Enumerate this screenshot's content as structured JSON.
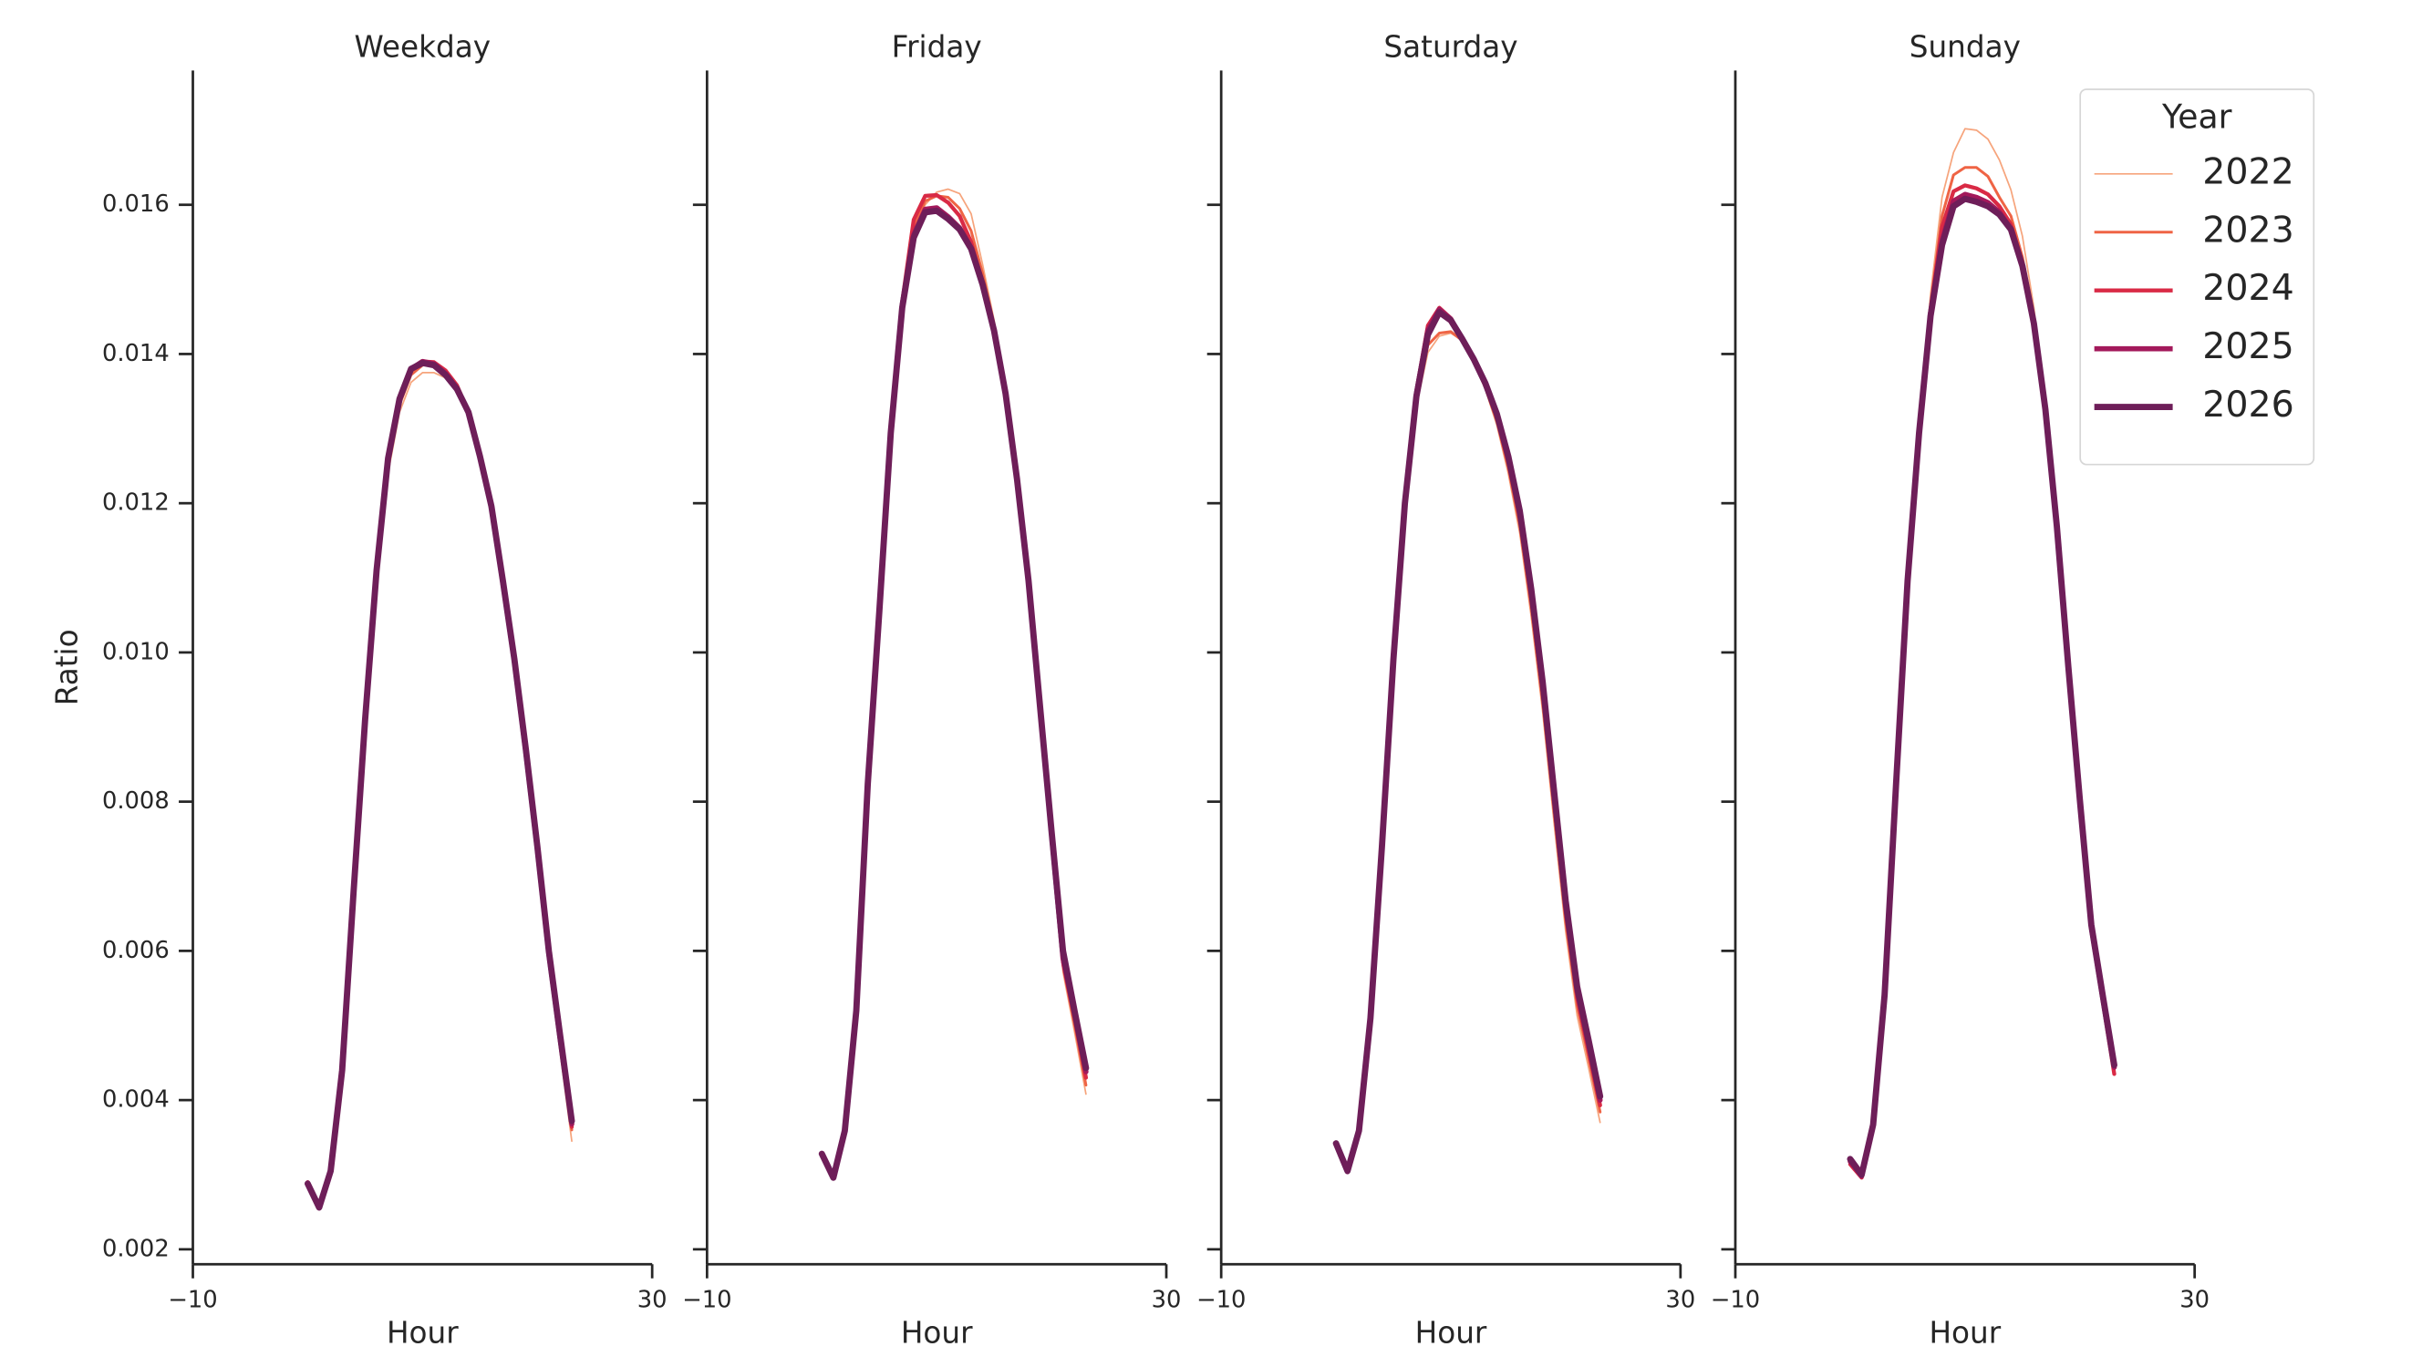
{
  "chart_data": [
    {
      "type": "line",
      "title": "Weekday",
      "xlabel": "Hour",
      "ylabel": "Ratio",
      "x": [
        0,
        1,
        2,
        3,
        4,
        5,
        6,
        7,
        8,
        9,
        10,
        11,
        12,
        13,
        14,
        15,
        16,
        17,
        18,
        19,
        20,
        21,
        22,
        23
      ],
      "xlim": [
        -10,
        30
      ],
      "xticks": [
        {
          "value": -10,
          "label": "−10"
        },
        30
      ],
      "ylim": [
        0.0018,
        0.0178
      ],
      "yticks": [
        0.002,
        0.004,
        0.006,
        0.008,
        {
          "value": 0.01,
          "label": "0.010"
        },
        0.012,
        0.014,
        0.016
      ],
      "series": [
        {
          "color": "#f6a47c",
          "linewidth": 1,
          "values": [
            0.0029,
            0.00258,
            0.00306,
            0.0044,
            0.0068,
            0.0091,
            0.011,
            0.0124,
            0.01322,
            0.01362,
            0.01375,
            0.01375,
            0.01368,
            0.0135,
            0.01318,
            0.01258,
            0.01186,
            0.0108,
            0.00972,
            0.00848,
            0.00718,
            0.0058,
            0.00462,
            0.00345
          ]
        },
        {
          "color": "#ef6445",
          "linewidth": 1.75,
          "values": [
            0.0029,
            0.00258,
            0.00306,
            0.0044,
            0.0068,
            0.0091,
            0.0111,
            0.0125,
            0.01332,
            0.01372,
            0.01385,
            0.01388,
            0.01378,
            0.01358,
            0.01322,
            0.0126,
            0.0119,
            0.01086,
            0.0098,
            0.00857,
            0.00727,
            0.00588,
            0.00472,
            0.0036
          ]
        },
        {
          "color": "#d92a45",
          "linewidth": 2.5,
          "values": [
            0.0029,
            0.00258,
            0.00306,
            0.0044,
            0.0068,
            0.0091,
            0.0111,
            0.0126,
            0.01338,
            0.01378,
            0.0139,
            0.01389,
            0.01378,
            0.01358,
            0.01322,
            0.01262,
            0.01192,
            0.0109,
            0.00984,
            0.00862,
            0.00732,
            0.00592,
            0.00477,
            0.00364
          ]
        },
        {
          "color": "#a3195b",
          "linewidth": 3.25,
          "values": [
            0.00289,
            0.00257,
            0.00306,
            0.0044,
            0.0068,
            0.0091,
            0.0111,
            0.0126,
            0.0134,
            0.0138,
            0.0139,
            0.01387,
            0.01374,
            0.01354,
            0.01322,
            0.01262,
            0.01194,
            0.01093,
            0.00988,
            0.00866,
            0.00736,
            0.00596,
            0.00481,
            0.00368
          ]
        },
        {
          "color": "#6e1e59",
          "linewidth": 4,
          "values": [
            0.00288,
            0.00256,
            0.00305,
            0.0044,
            0.0068,
            0.0091,
            0.0111,
            0.0126,
            0.0134,
            0.0138,
            0.01388,
            0.01385,
            0.01372,
            0.01353,
            0.01322,
            0.01263,
            0.01196,
            0.01096,
            0.00991,
            0.0087,
            0.0074,
            0.006,
            0.00485,
            0.00372
          ]
        }
      ]
    },
    {
      "type": "line",
      "title": "Friday",
      "xlabel": "Hour",
      "x": [
        0,
        1,
        2,
        3,
        4,
        5,
        6,
        7,
        8,
        9,
        10,
        11,
        12,
        13,
        14,
        15,
        16,
        17,
        18,
        19,
        20,
        21,
        22,
        23
      ],
      "xlim": [
        -10,
        30
      ],
      "xticks": [
        {
          "value": -10,
          "label": "−10"
        },
        30
      ],
      "ylim": [
        0.0018,
        0.0178
      ],
      "yticks": [
        0.002,
        0.004,
        0.006,
        0.008,
        0.01,
        0.012,
        0.014,
        0.016
      ],
      "series": [
        {
          "color": "#f6a47c",
          "linewidth": 1,
          "values": [
            0.00324,
            0.00294,
            0.00357,
            0.0052,
            0.00824,
            0.01055,
            0.01294,
            0.0146,
            0.01562,
            0.016,
            0.01617,
            0.01621,
            0.01615,
            0.01588,
            0.0152,
            0.01445,
            0.01352,
            0.0123,
            0.01088,
            0.00914,
            0.00742,
            0.00572,
            0.00492,
            0.00408
          ]
        },
        {
          "color": "#ef6445",
          "linewidth": 1.75,
          "values": [
            0.00325,
            0.00295,
            0.00358,
            0.0052,
            0.00826,
            0.01058,
            0.01298,
            0.01466,
            0.0157,
            0.01605,
            0.01612,
            0.0161,
            0.01595,
            0.01565,
            0.01508,
            0.0144,
            0.0135,
            0.0123,
            0.0109,
            0.00918,
            0.00748,
            0.0058,
            0.00502,
            0.0042
          ]
        },
        {
          "color": "#d92a45",
          "linewidth": 2.5,
          "values": [
            0.00326,
            0.00296,
            0.0036,
            0.0052,
            0.00828,
            0.0106,
            0.013,
            0.0147,
            0.0158,
            0.01612,
            0.01613,
            0.01603,
            0.01585,
            0.0155,
            0.01496,
            0.01432,
            0.01345,
            0.01228,
            0.0109,
            0.0092,
            0.00752,
            0.00585,
            0.0051,
            0.0043
          ]
        },
        {
          "color": "#a3195b",
          "linewidth": 3.25,
          "values": [
            0.00328,
            0.00297,
            0.0036,
            0.0052,
            0.00826,
            0.01057,
            0.01297,
            0.01466,
            0.0156,
            0.01594,
            0.01596,
            0.01584,
            0.01569,
            0.01542,
            0.01493,
            0.0143,
            0.01345,
            0.0123,
            0.01093,
            0.00925,
            0.00757,
            0.0059,
            0.00516,
            0.00438
          ]
        },
        {
          "color": "#6e1e59",
          "linewidth": 4,
          "values": [
            0.00328,
            0.00296,
            0.00359,
            0.0052,
            0.00824,
            0.01054,
            0.01294,
            0.01462,
            0.01556,
            0.0159,
            0.01592,
            0.01581,
            0.01567,
            0.01541,
            0.01493,
            0.01431,
            0.01347,
            0.01232,
            0.01096,
            0.00928,
            0.00761,
            0.006,
            0.0052,
            0.00443
          ]
        }
      ]
    },
    {
      "type": "line",
      "title": "Saturday",
      "xlabel": "Hour",
      "x": [
        0,
        1,
        2,
        3,
        4,
        5,
        6,
        7,
        8,
        9,
        10,
        11,
        12,
        13,
        14,
        15,
        16,
        17,
        18,
        19,
        20,
        21,
        22,
        23
      ],
      "xlim": [
        -10,
        30
      ],
      "xticks": [
        {
          "value": -10,
          "label": "−10"
        },
        30
      ],
      "ylim": [
        0.0018,
        0.0178
      ],
      "yticks": [
        0.002,
        0.004,
        0.006,
        0.008,
        0.01,
        0.012,
        0.014,
        0.016
      ],
      "series": [
        {
          "color": "#f6a47c",
          "linewidth": 1,
          "values": [
            0.00339,
            0.00302,
            0.00356,
            0.0051,
            0.00738,
            0.00987,
            0.01196,
            0.0133,
            0.01402,
            0.01424,
            0.01428,
            0.01418,
            0.0139,
            0.01353,
            0.01305,
            0.0124,
            0.0116,
            0.01048,
            0.0092,
            0.0077,
            0.00626,
            0.00513,
            0.00443,
            0.0037
          ]
        },
        {
          "color": "#ef6445",
          "linewidth": 1.75,
          "values": [
            0.0034,
            0.00303,
            0.00357,
            0.0051,
            0.0074,
            0.0099,
            0.012,
            0.01335,
            0.01412,
            0.01428,
            0.0143,
            0.01418,
            0.0139,
            0.01355,
            0.0131,
            0.01248,
            0.0117,
            0.0106,
            0.00932,
            0.00784,
            0.0064,
            0.00527,
            0.00456,
            0.00384
          ]
        },
        {
          "color": "#d92a45",
          "linewidth": 2.5,
          "values": [
            0.0034,
            0.00304,
            0.00358,
            0.0051,
            0.00744,
            0.00996,
            0.01206,
            0.0135,
            0.01438,
            0.01462,
            0.01448,
            0.01421,
            0.01392,
            0.01358,
            0.01315,
            0.01255,
            0.0118,
            0.01072,
            0.00946,
            0.00798,
            0.00652,
            0.00538,
            0.00466,
            0.00393
          ]
        },
        {
          "color": "#a3195b",
          "linewidth": 3.25,
          "values": [
            0.00341,
            0.00304,
            0.00358,
            0.0051,
            0.00742,
            0.00994,
            0.01203,
            0.01347,
            0.01432,
            0.0146,
            0.01447,
            0.0142,
            0.01392,
            0.0136,
            0.01318,
            0.0126,
            0.01186,
            0.0108,
            0.00954,
            0.00806,
            0.0066,
            0.00546,
            0.00474,
            0.004
          ]
        },
        {
          "color": "#6e1e59",
          "linewidth": 4,
          "values": [
            0.00342,
            0.00305,
            0.00359,
            0.0051,
            0.0074,
            0.00991,
            0.012,
            0.01343,
            0.01426,
            0.01456,
            0.01445,
            0.0142,
            0.01393,
            0.01361,
            0.0132,
            0.01263,
            0.0119,
            0.01085,
            0.0096,
            0.00813,
            0.00667,
            0.00552,
            0.0048,
            0.00405
          ]
        }
      ]
    },
    {
      "type": "line",
      "title": "Sunday",
      "xlabel": "Hour",
      "x": [
        0,
        1,
        2,
        3,
        4,
        5,
        6,
        7,
        8,
        9,
        10,
        11,
        12,
        13,
        14,
        15,
        16,
        17,
        18,
        19,
        20,
        21,
        22,
        23
      ],
      "xlim": [
        -10,
        30
      ],
      "xticks": [
        {
          "value": -10,
          "label": "−10"
        },
        30
      ],
      "ylim": [
        0.0018,
        0.0178
      ],
      "yticks": [
        0.002,
        0.004,
        0.006,
        0.008,
        0.01,
        0.012,
        0.014,
        0.016
      ],
      "legend": {
        "title": "Year",
        "loc": "upper right"
      },
      "series": [
        {
          "name": "2022",
          "color": "#f6a47c",
          "linewidth": 1,
          "values": [
            0.00318,
            0.00298,
            0.00366,
            0.0054,
            0.00826,
            0.011,
            0.01305,
            0.0148,
            0.0161,
            0.0167,
            0.01702,
            0.017,
            0.01688,
            0.0166,
            0.0162,
            0.01558,
            0.01462,
            0.01332,
            0.01165,
            0.00974,
            0.00795,
            0.00628,
            0.00532,
            0.0044
          ]
        },
        {
          "name": "2023",
          "color": "#ef6445",
          "linewidth": 1.75,
          "values": [
            0.00316,
            0.00297,
            0.00365,
            0.0054,
            0.00826,
            0.011,
            0.01302,
            0.01466,
            0.01585,
            0.0164,
            0.0165,
            0.0165,
            0.01638,
            0.0161,
            0.01585,
            0.0153,
            0.01446,
            0.01325,
            0.01163,
            0.00973,
            0.00794,
            0.00626,
            0.0053,
            0.00438
          ]
        },
        {
          "name": "2024",
          "color": "#d92a45",
          "linewidth": 2.5,
          "values": [
            0.00314,
            0.00296,
            0.00365,
            0.0054,
            0.00826,
            0.011,
            0.013,
            0.0146,
            0.0157,
            0.01618,
            0.01626,
            0.01622,
            0.01614,
            0.01598,
            0.01574,
            0.01522,
            0.01442,
            0.01324,
            0.01164,
            0.00975,
            0.00796,
            0.00628,
            0.00532,
            0.00435
          ]
        },
        {
          "name": "2025",
          "color": "#a3195b",
          "linewidth": 3.25,
          "values": [
            0.00318,
            0.00298,
            0.00366,
            0.0054,
            0.00825,
            0.01098,
            0.01297,
            0.01455,
            0.01552,
            0.01605,
            0.01614,
            0.0161,
            0.01603,
            0.0159,
            0.01568,
            0.01518,
            0.0144,
            0.01324,
            0.01166,
            0.00978,
            0.008,
            0.00632,
            0.00537,
            0.00444
          ]
        },
        {
          "name": "2026",
          "color": "#6e1e59",
          "linewidth": 4,
          "values": [
            0.00321,
            0.003,
            0.00367,
            0.00541,
            0.00824,
            0.01096,
            0.01294,
            0.01451,
            0.01546,
            0.01598,
            0.01608,
            0.01604,
            0.01598,
            0.01587,
            0.01567,
            0.01518,
            0.01441,
            0.01326,
            0.01169,
            0.00981,
            0.00803,
            0.00635,
            0.0054,
            0.00447
          ]
        }
      ]
    }
  ]
}
